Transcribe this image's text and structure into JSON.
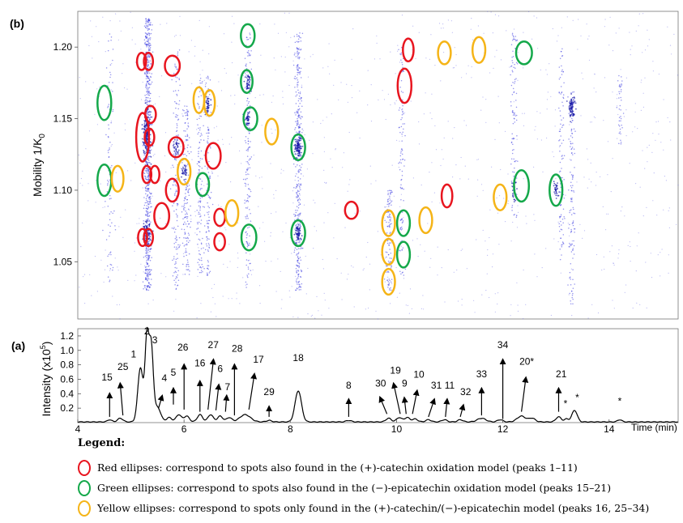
{
  "colors": {
    "red": "#e8151f",
    "green": "#14a84a",
    "yellow": "#f5b417",
    "dots": "#3a3ae0",
    "trace": "#000000"
  },
  "panel_b_label": "(b)",
  "panel_a_label": "(a)",
  "legend": {
    "title": "Legend:",
    "items": [
      {
        "color": "red",
        "text": "Red ellipses: correspond to spots also found in the (+)-catechin oxidation model (peaks 1–11)"
      },
      {
        "color": "green",
        "text": "Green ellipses: correspond to spots also found in the (−)-epicatechin oxidation model (peaks 15–21)"
      },
      {
        "color": "yellow",
        "text": "Yellow ellipses: correspond to spots only found in the (+)-catechin/(−)-epicatechin model (peaks 16, 25–34)"
      }
    ]
  },
  "chart_data": [
    {
      "type": "scatter",
      "panel": "(b)",
      "ylabel": "Mobility 1/K0",
      "ylabel_main": "Mobility 1/K",
      "ylabel_sub": "0",
      "xlim": [
        4,
        15.3
      ],
      "ylim": [
        1.01,
        1.225
      ],
      "yticks": [
        1.05,
        1.1,
        1.15,
        1.2
      ],
      "ytick_labels": [
        "1.05",
        "1.10",
        "1.15",
        "1.20"
      ],
      "bands": [
        {
          "x": 4.6,
          "y0": 1.03,
          "y1": 1.21,
          "w": 0.08,
          "n": 80
        },
        {
          "x": 5.32,
          "y0": 1.03,
          "y1": 1.22,
          "w": 0.07,
          "n": 700
        },
        {
          "x": 5.85,
          "y0": 1.03,
          "y1": 1.2,
          "w": 0.07,
          "n": 160
        },
        {
          "x": 6.05,
          "y0": 1.04,
          "y1": 1.16,
          "w": 0.07,
          "n": 160
        },
        {
          "x": 6.3,
          "y0": 1.04,
          "y1": 1.18,
          "w": 0.06,
          "n": 120
        },
        {
          "x": 6.45,
          "y0": 1.04,
          "y1": 1.18,
          "w": 0.06,
          "n": 120
        },
        {
          "x": 7.2,
          "y0": 1.03,
          "y1": 1.21,
          "w": 0.06,
          "n": 160
        },
        {
          "x": 8.15,
          "y0": 1.03,
          "y1": 1.21,
          "w": 0.07,
          "n": 360
        },
        {
          "x": 9.85,
          "y0": 1.03,
          "y1": 1.1,
          "w": 0.07,
          "n": 120
        },
        {
          "x": 10.1,
          "y0": 1.04,
          "y1": 1.2,
          "w": 0.06,
          "n": 100
        },
        {
          "x": 12.2,
          "y0": 1.08,
          "y1": 1.21,
          "w": 0.06,
          "n": 100
        },
        {
          "x": 13.1,
          "y0": 1.05,
          "y1": 1.2,
          "w": 0.06,
          "n": 100
        },
        {
          "x": 13.3,
          "y0": 1.02,
          "y1": 1.17,
          "w": 0.06,
          "n": 120
        },
        {
          "x": 14.2,
          "y0": 1.13,
          "y1": 1.18,
          "w": 0.06,
          "n": 40
        }
      ],
      "blobs": [
        {
          "x": 5.3,
          "y": 1.14,
          "sx": 0.06,
          "sy": 0.015,
          "n": 200
        },
        {
          "x": 5.3,
          "y": 1.07,
          "sx": 0.06,
          "sy": 0.006,
          "n": 80
        },
        {
          "x": 8.15,
          "y": 1.13,
          "sx": 0.05,
          "sy": 0.006,
          "n": 90
        },
        {
          "x": 8.15,
          "y": 1.07,
          "sx": 0.05,
          "sy": 0.005,
          "n": 60
        },
        {
          "x": 13.3,
          "y": 1.158,
          "sx": 0.05,
          "sy": 0.006,
          "n": 80
        },
        {
          "x": 7.2,
          "y": 1.175,
          "sx": 0.04,
          "sy": 0.005,
          "n": 40
        },
        {
          "x": 7.2,
          "y": 1.15,
          "sx": 0.04,
          "sy": 0.005,
          "n": 40
        },
        {
          "x": 6.45,
          "y": 1.16,
          "sx": 0.04,
          "sy": 0.005,
          "n": 40
        },
        {
          "x": 5.85,
          "y": 1.13,
          "sx": 0.04,
          "sy": 0.005,
          "n": 30
        },
        {
          "x": 6.0,
          "y": 1.113,
          "sx": 0.04,
          "sy": 0.005,
          "n": 30
        },
        {
          "x": 12.2,
          "y": 1.1,
          "sx": 0.04,
          "sy": 0.006,
          "n": 30
        },
        {
          "x": 13.0,
          "y": 1.1,
          "sx": 0.04,
          "sy": 0.006,
          "n": 30
        }
      ],
      "ellipses": [
        {
          "c": "red",
          "x": 5.2,
          "y": 1.19,
          "rx": 0.085,
          "ry": 0.006
        },
        {
          "c": "red",
          "x": 5.33,
          "y": 1.19,
          "rx": 0.085,
          "ry": 0.006
        },
        {
          "c": "red",
          "x": 5.78,
          "y": 1.187,
          "rx": 0.14,
          "ry": 0.007
        },
        {
          "c": "red",
          "x": 5.37,
          "y": 1.153,
          "rx": 0.1,
          "ry": 0.006
        },
        {
          "c": "red",
          "x": 5.22,
          "y": 1.137,
          "rx": 0.12,
          "ry": 0.017
        },
        {
          "c": "red",
          "x": 5.35,
          "y": 1.137,
          "rx": 0.09,
          "ry": 0.006
        },
        {
          "c": "red",
          "x": 5.85,
          "y": 1.13,
          "rx": 0.14,
          "ry": 0.007
        },
        {
          "c": "red",
          "x": 6.55,
          "y": 1.124,
          "rx": 0.14,
          "ry": 0.009
        },
        {
          "c": "red",
          "x": 5.3,
          "y": 1.111,
          "rx": 0.085,
          "ry": 0.006
        },
        {
          "c": "red",
          "x": 5.45,
          "y": 1.111,
          "rx": 0.085,
          "ry": 0.006
        },
        {
          "c": "red",
          "x": 5.78,
          "y": 1.1,
          "rx": 0.12,
          "ry": 0.008
        },
        {
          "c": "red",
          "x": 5.58,
          "y": 1.082,
          "rx": 0.14,
          "ry": 0.009
        },
        {
          "c": "red",
          "x": 6.67,
          "y": 1.081,
          "rx": 0.1,
          "ry": 0.006
        },
        {
          "c": "red",
          "x": 6.67,
          "y": 1.064,
          "rx": 0.1,
          "ry": 0.006
        },
        {
          "c": "red",
          "x": 5.22,
          "y": 1.067,
          "rx": 0.085,
          "ry": 0.006
        },
        {
          "c": "red",
          "x": 5.33,
          "y": 1.067,
          "rx": 0.085,
          "ry": 0.006
        },
        {
          "c": "red",
          "x": 9.15,
          "y": 1.086,
          "rx": 0.12,
          "ry": 0.006
        },
        {
          "c": "red",
          "x": 10.22,
          "y": 1.198,
          "rx": 0.1,
          "ry": 0.008
        },
        {
          "c": "red",
          "x": 10.15,
          "y": 1.173,
          "rx": 0.13,
          "ry": 0.012
        },
        {
          "c": "red",
          "x": 10.95,
          "y": 1.096,
          "rx": 0.1,
          "ry": 0.008
        },
        {
          "c": "green",
          "x": 4.5,
          "y": 1.161,
          "rx": 0.13,
          "ry": 0.012
        },
        {
          "c": "green",
          "x": 4.5,
          "y": 1.107,
          "rx": 0.13,
          "ry": 0.011
        },
        {
          "c": "green",
          "x": 6.35,
          "y": 1.104,
          "rx": 0.12,
          "ry": 0.008
        },
        {
          "c": "green",
          "x": 7.2,
          "y": 1.208,
          "rx": 0.13,
          "ry": 0.008
        },
        {
          "c": "green",
          "x": 7.18,
          "y": 1.176,
          "rx": 0.11,
          "ry": 0.008
        },
        {
          "c": "green",
          "x": 7.25,
          "y": 1.15,
          "rx": 0.13,
          "ry": 0.008
        },
        {
          "c": "green",
          "x": 7.22,
          "y": 1.067,
          "rx": 0.14,
          "ry": 0.009
        },
        {
          "c": "green",
          "x": 8.15,
          "y": 1.13,
          "rx": 0.13,
          "ry": 0.009
        },
        {
          "c": "green",
          "x": 8.15,
          "y": 1.07,
          "rx": 0.13,
          "ry": 0.009
        },
        {
          "c": "green",
          "x": 10.13,
          "y": 1.077,
          "rx": 0.12,
          "ry": 0.009
        },
        {
          "c": "green",
          "x": 10.13,
          "y": 1.055,
          "rx": 0.12,
          "ry": 0.009
        },
        {
          "c": "green",
          "x": 12.4,
          "y": 1.196,
          "rx": 0.15,
          "ry": 0.008
        },
        {
          "c": "green",
          "x": 12.35,
          "y": 1.103,
          "rx": 0.14,
          "ry": 0.011
        },
        {
          "c": "green",
          "x": 13.0,
          "y": 1.1,
          "rx": 0.12,
          "ry": 0.011
        },
        {
          "c": "yellow",
          "x": 4.75,
          "y": 1.108,
          "rx": 0.11,
          "ry": 0.009
        },
        {
          "c": "yellow",
          "x": 6.28,
          "y": 1.163,
          "rx": 0.1,
          "ry": 0.009
        },
        {
          "c": "yellow",
          "x": 6.48,
          "y": 1.161,
          "rx": 0.1,
          "ry": 0.009
        },
        {
          "c": "yellow",
          "x": 6.0,
          "y": 1.113,
          "rx": 0.12,
          "ry": 0.009
        },
        {
          "c": "yellow",
          "x": 6.9,
          "y": 1.084,
          "rx": 0.12,
          "ry": 0.009
        },
        {
          "c": "yellow",
          "x": 7.65,
          "y": 1.141,
          "rx": 0.12,
          "ry": 0.009
        },
        {
          "c": "yellow",
          "x": 9.85,
          "y": 1.077,
          "rx": 0.12,
          "ry": 0.009
        },
        {
          "c": "yellow",
          "x": 9.85,
          "y": 1.057,
          "rx": 0.12,
          "ry": 0.009
        },
        {
          "c": "yellow",
          "x": 9.85,
          "y": 1.036,
          "rx": 0.12,
          "ry": 0.009
        },
        {
          "c": "yellow",
          "x": 10.55,
          "y": 1.079,
          "rx": 0.12,
          "ry": 0.009
        },
        {
          "c": "yellow",
          "x": 10.9,
          "y": 1.196,
          "rx": 0.12,
          "ry": 0.008
        },
        {
          "c": "yellow",
          "x": 11.55,
          "y": 1.198,
          "rx": 0.12,
          "ry": 0.009
        },
        {
          "c": "yellow",
          "x": 11.95,
          "y": 1.095,
          "rx": 0.12,
          "ry": 0.009
        }
      ]
    },
    {
      "type": "line",
      "panel": "(a)",
      "ylabel": "Intensity (x10^5)",
      "ylabel_main": "Intensity (x10",
      "ylabel_sup": "5",
      "ylabel_end": ")",
      "xlabel": "Time (min)",
      "xlim": [
        4,
        15.3
      ],
      "ylim": [
        0,
        1.3
      ],
      "xticks": [
        4,
        6,
        8,
        10,
        12,
        14
      ],
      "xtick_labels": [
        "4",
        "6",
        "8",
        "10",
        "12",
        "14"
      ],
      "yticks": [
        0.2,
        0.4,
        0.6,
        0.8,
        1.0,
        1.2
      ],
      "ytick_labels": [
        "0.2",
        "0.4",
        "0.6",
        "0.8",
        "1.0",
        "1.2"
      ],
      "baseline": 0.01,
      "peaks": [
        {
          "x": 4.6,
          "h": 0.03,
          "w": 0.04
        },
        {
          "x": 4.8,
          "h": 0.05,
          "w": 0.05
        },
        {
          "x": 5.18,
          "h": 0.75,
          "w": 0.05
        },
        {
          "x": 5.3,
          "h": 1.1,
          "w": 0.035
        },
        {
          "x": 5.38,
          "h": 1.05,
          "w": 0.04
        },
        {
          "x": 5.5,
          "h": 0.2,
          "w": 0.06
        },
        {
          "x": 5.72,
          "h": 0.06,
          "w": 0.05
        },
        {
          "x": 5.9,
          "h": 0.1,
          "w": 0.05
        },
        {
          "x": 6.05,
          "h": 0.08,
          "w": 0.05
        },
        {
          "x": 6.3,
          "h": 0.1,
          "w": 0.05
        },
        {
          "x": 6.5,
          "h": 0.1,
          "w": 0.05
        },
        {
          "x": 6.68,
          "h": 0.08,
          "w": 0.05
        },
        {
          "x": 6.85,
          "h": 0.06,
          "w": 0.05
        },
        {
          "x": 7.15,
          "h": 0.1,
          "w": 0.1
        },
        {
          "x": 7.6,
          "h": 0.02,
          "w": 0.05
        },
        {
          "x": 8.15,
          "h": 0.43,
          "w": 0.06
        },
        {
          "x": 9.1,
          "h": 0.02,
          "w": 0.05
        },
        {
          "x": 9.85,
          "h": 0.05,
          "w": 0.05
        },
        {
          "x": 10.05,
          "h": 0.06,
          "w": 0.05
        },
        {
          "x": 10.2,
          "h": 0.06,
          "w": 0.05
        },
        {
          "x": 10.35,
          "h": 0.04,
          "w": 0.05
        },
        {
          "x": 10.6,
          "h": 0.03,
          "w": 0.05
        },
        {
          "x": 10.9,
          "h": 0.03,
          "w": 0.05
        },
        {
          "x": 11.2,
          "h": 0.03,
          "w": 0.05
        },
        {
          "x": 11.6,
          "h": 0.05,
          "w": 0.08
        },
        {
          "x": 11.95,
          "h": 0.03,
          "w": 0.05
        },
        {
          "x": 12.35,
          "h": 0.08,
          "w": 0.08
        },
        {
          "x": 12.55,
          "h": 0.05,
          "w": 0.06
        },
        {
          "x": 13.05,
          "h": 0.07,
          "w": 0.05
        },
        {
          "x": 13.2,
          "h": 0.04,
          "w": 0.04
        },
        {
          "x": 13.35,
          "h": 0.16,
          "w": 0.05
        },
        {
          "x": 14.2,
          "h": 0.03,
          "w": 0.04
        }
      ],
      "annotations": [
        {
          "text": "15",
          "tx": 4.55,
          "ty": 0.58,
          "ax1": 4.6,
          "ay1": 0.38,
          "ax2": 4.6,
          "ay2": 0.08
        },
        {
          "text": "25",
          "tx": 4.85,
          "ty": 0.73,
          "ax1": 4.8,
          "ay1": 0.52,
          "ax2": 4.85,
          "ay2": 0.1
        },
        {
          "text": "1",
          "tx": 5.05,
          "ty": 0.9,
          "ax1": null
        },
        {
          "text": "2",
          "tx": 5.3,
          "ty": 1.22,
          "ax1": null
        },
        {
          "text": "3",
          "tx": 5.45,
          "ty": 1.1,
          "ax1": null
        },
        {
          "text": "4",
          "tx": 5.63,
          "ty": 0.57,
          "ax1": 5.58,
          "ay1": 0.35,
          "ax2": 5.52,
          "ay2": 0.2
        },
        {
          "text": "5",
          "tx": 5.8,
          "ty": 0.65,
          "ax1": 5.8,
          "ay1": 0.45,
          "ax2": 5.8,
          "ay2": 0.25
        },
        {
          "text": "26",
          "tx": 5.98,
          "ty": 1.0,
          "ax1": 6.0,
          "ay1": 0.78,
          "ax2": 6.0,
          "ay2": 0.18
        },
        {
          "text": "16",
          "tx": 6.3,
          "ty": 0.78,
          "ax1": 6.3,
          "ay1": 0.55,
          "ax2": 6.3,
          "ay2": 0.15
        },
        {
          "text": "27",
          "tx": 6.55,
          "ty": 1.03,
          "ax1": 6.55,
          "ay1": 0.85,
          "ax2": 6.45,
          "ay2": 0.18
        },
        {
          "text": "6",
          "tx": 6.68,
          "ty": 0.7,
          "ax1": 6.65,
          "ay1": 0.5,
          "ax2": 6.6,
          "ay2": 0.17
        },
        {
          "text": "7",
          "tx": 6.82,
          "ty": 0.45,
          "ax1": 6.8,
          "ay1": 0.35,
          "ax2": 6.78,
          "ay2": 0.15
        },
        {
          "text": "28",
          "tx": 7.0,
          "ty": 0.98,
          "ax1": 6.95,
          "ay1": 0.78,
          "ax2": 6.95,
          "ay2": 0.1
        },
        {
          "text": "17",
          "tx": 7.4,
          "ty": 0.83,
          "ax1": 7.32,
          "ay1": 0.65,
          "ax2": 7.22,
          "ay2": 0.18
        },
        {
          "text": "29",
          "tx": 7.6,
          "ty": 0.38,
          "ax1": 7.6,
          "ay1": 0.2,
          "ax2": 7.6,
          "ay2": 0.08
        },
        {
          "text": "18",
          "tx": 8.15,
          "ty": 0.85,
          "ax1": null
        },
        {
          "text": "8",
          "tx": 9.1,
          "ty": 0.47,
          "ax1": 9.1,
          "ay1": 0.3,
          "ax2": 9.1,
          "ay2": 0.08
        },
        {
          "text": "30",
          "tx": 9.7,
          "ty": 0.5,
          "ax1": 9.7,
          "ay1": 0.33,
          "ax2": 9.82,
          "ay2": 0.12
        },
        {
          "text": "19",
          "tx": 9.98,
          "ty": 0.68,
          "ax1": 9.95,
          "ay1": 0.52,
          "ax2": 10.07,
          "ay2": 0.12
        },
        {
          "text": "9",
          "tx": 10.15,
          "ty": 0.5,
          "ax1": 10.15,
          "ay1": 0.32,
          "ax2": 10.18,
          "ay2": 0.12
        },
        {
          "text": "10",
          "tx": 10.42,
          "ty": 0.62,
          "ax1": 10.38,
          "ay1": 0.42,
          "ax2": 10.3,
          "ay2": 0.12
        },
        {
          "text": "31",
          "tx": 10.75,
          "ty": 0.47,
          "ax1": 10.7,
          "ay1": 0.3,
          "ax2": 10.6,
          "ay2": 0.08
        },
        {
          "text": "11",
          "tx": 11.0,
          "ty": 0.47,
          "ax1": 10.95,
          "ay1": 0.3,
          "ax2": 10.92,
          "ay2": 0.08
        },
        {
          "text": "32",
          "tx": 11.3,
          "ty": 0.38,
          "ax1": 11.25,
          "ay1": 0.22,
          "ax2": 11.2,
          "ay2": 0.08
        },
        {
          "text": "33",
          "tx": 11.6,
          "ty": 0.63,
          "ax1": 11.6,
          "ay1": 0.45,
          "ax2": 11.6,
          "ay2": 0.1
        },
        {
          "text": "34",
          "tx": 12.0,
          "ty": 1.03,
          "ax1": 12.0,
          "ay1": 0.85,
          "ax2": 12.0,
          "ay2": 0.05
        },
        {
          "text": "20*",
          "tx": 12.45,
          "ty": 0.8,
          "ax1": 12.43,
          "ay1": 0.6,
          "ax2": 12.35,
          "ay2": 0.15
        },
        {
          "text": "21",
          "tx": 13.1,
          "ty": 0.63,
          "ax1": 13.05,
          "ay1": 0.45,
          "ax2": 13.05,
          "ay2": 0.15
        },
        {
          "text": "*",
          "tx": 13.18,
          "ty": 0.22,
          "ax1": null
        },
        {
          "text": "*",
          "tx": 13.4,
          "ty": 0.3,
          "ax1": null
        },
        {
          "text": "*",
          "tx": 14.2,
          "ty": 0.25,
          "ax1": null
        }
      ]
    }
  ]
}
